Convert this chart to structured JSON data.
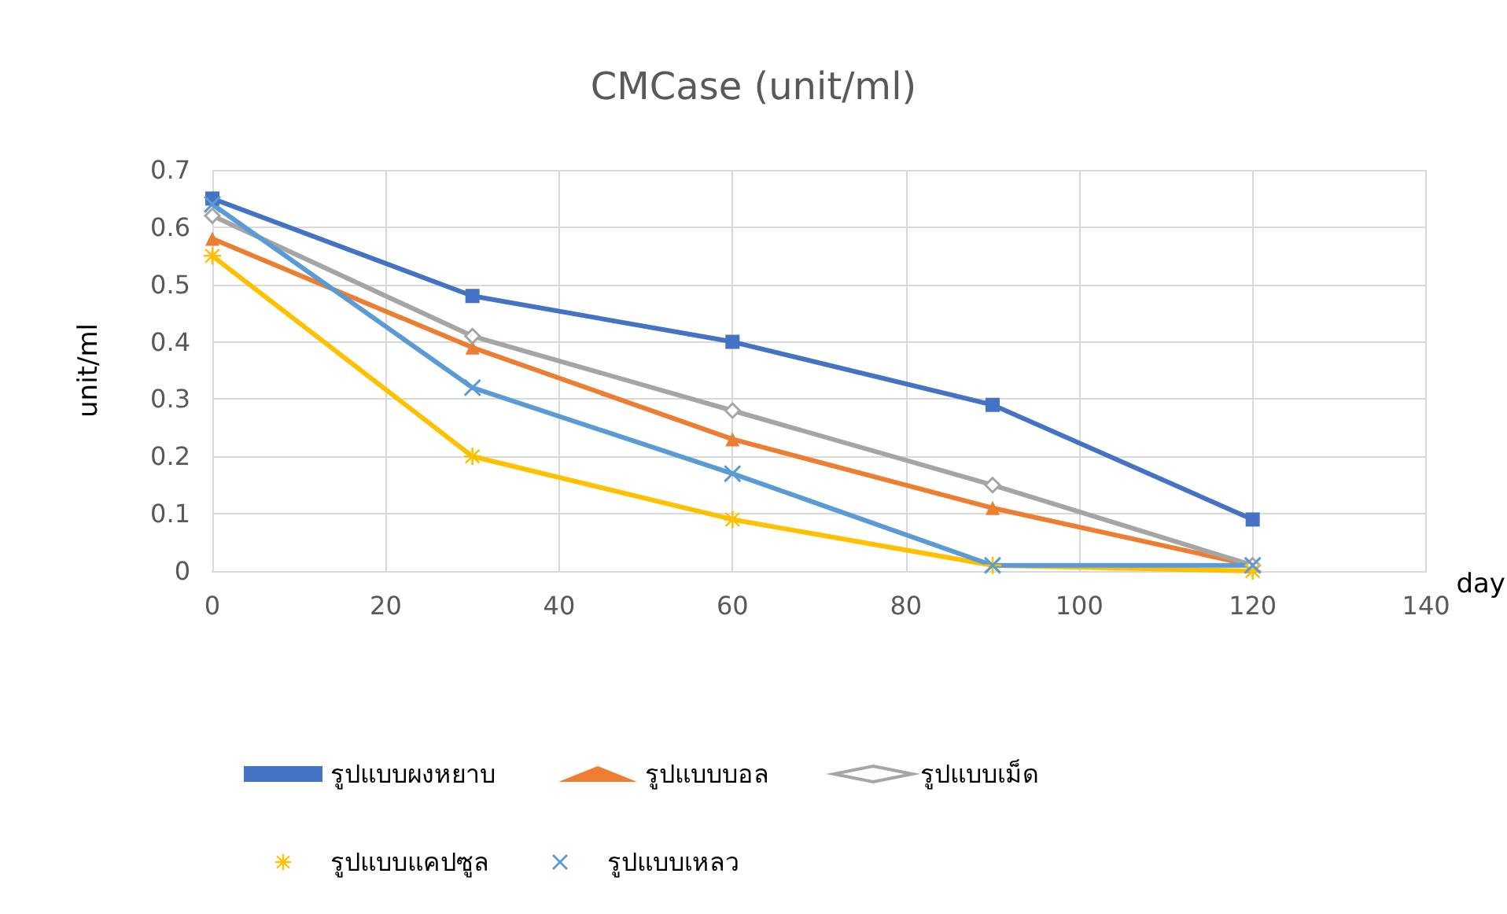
{
  "chart_data": {
    "type": "line",
    "title": "CMCase (unit/ml)",
    "xlabel": "day",
    "ylabel": "unit/ml",
    "x": [
      0,
      30,
      60,
      90,
      120
    ],
    "series": [
      {
        "name": "รูปแบบผงหยาบ",
        "color": "#4472c4",
        "marker": "square",
        "values": [
          0.65,
          0.48,
          0.4,
          0.29,
          0.09
        ]
      },
      {
        "name": "รูปแบบบอล",
        "color": "#ed7d31",
        "marker": "triangle",
        "values": [
          0.58,
          0.39,
          0.23,
          0.11,
          0.01
        ]
      },
      {
        "name": "รูปแบบเม็ด",
        "color": "#a5a5a5",
        "marker": "diamond",
        "values": [
          0.62,
          0.41,
          0.28,
          0.15,
          0.01
        ]
      },
      {
        "name": "รูปแบบแคปซูล",
        "color": "#ffc000",
        "marker": "star",
        "values": [
          0.55,
          0.2,
          0.09,
          0.01,
          0
        ]
      },
      {
        "name": "รูปแบบเหลว",
        "color": "#5b9bd5",
        "marker": "cross",
        "values": [
          0.64,
          0.32,
          0.17,
          0.01,
          0.01
        ]
      }
    ],
    "xlim": [
      0,
      140
    ],
    "xticks": [
      0,
      20,
      40,
      60,
      80,
      100,
      120,
      140
    ],
    "ylim": [
      0,
      0.7
    ],
    "yticks": [
      0,
      0.1,
      0.2,
      0.3,
      0.4,
      0.5,
      0.6,
      0.7
    ],
    "grid": true,
    "legend": "bottom",
    "line_style": "solid"
  }
}
